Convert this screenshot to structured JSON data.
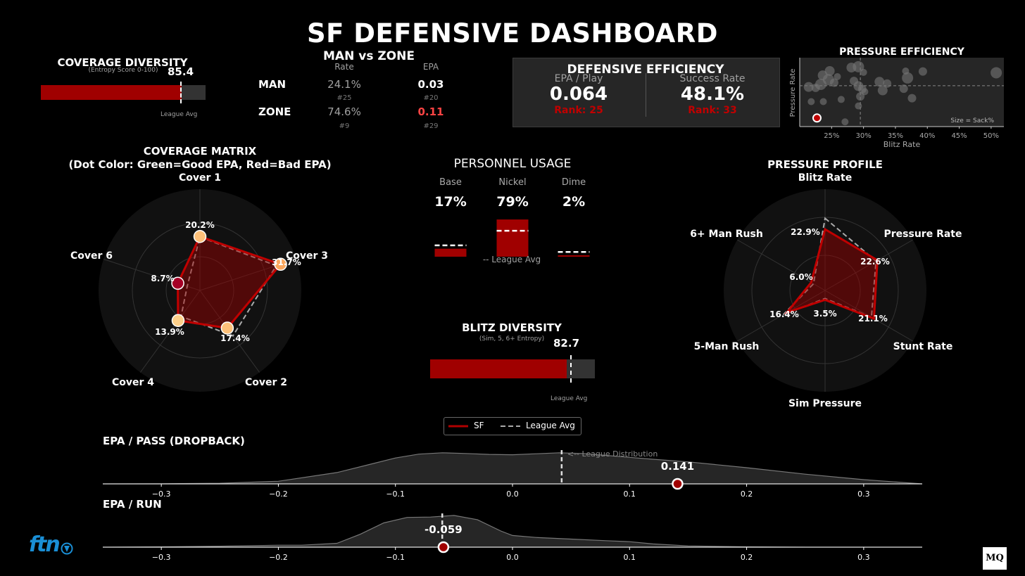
{
  "title": "SF DEFENSIVE DASHBOARD",
  "coverage_diversity": {
    "title": "COVERAGE DIVERSITY",
    "subtitle": "(Entropy Score 0-100)",
    "value": "85.4",
    "score": 85.4,
    "league_avg": 85.0,
    "league_label": "League Avg"
  },
  "man_zone": {
    "title": "MAN vs ZONE",
    "col_rate": "Rate",
    "col_epa": "EPA",
    "rows": [
      {
        "label": "MAN",
        "rate": "24.1%",
        "rate_rank": "#25",
        "epa": "0.03",
        "epa_rank": "#20"
      },
      {
        "label": "ZONE",
        "rate": "74.6%",
        "rate_rank": "#9",
        "epa": "0.11",
        "epa_rank": "#29"
      }
    ]
  },
  "defensive_efficiency": {
    "title": "DEFENSIVE EFFICIENCY",
    "epa_label": "EPA / Play",
    "epa_value": "0.064",
    "epa_rank": "Rank: 25",
    "success_label": "Success Rate",
    "success_value": "48.1%",
    "success_rank": "Rank: 33"
  },
  "pressure_efficiency": {
    "title": "PRESSURE EFFICIENCY",
    "xlabel": "Blitz Rate",
    "ylabel": "Pressure Rate",
    "note": "Size = Sack%",
    "x_ticks": [
      "25%",
      "30%",
      "35%",
      "40%",
      "45%",
      "50%"
    ]
  },
  "coverage_matrix": {
    "title_line1": "COVERAGE MATRIX",
    "title_line2": "(Dot Color: Green=Good EPA, Red=Bad EPA)",
    "axes": [
      "Cover 1",
      "Cover 3",
      "Cover 2",
      "Cover 4",
      "Cover 6"
    ],
    "labels": [
      "20.2%",
      "31.7%",
      "17.4%",
      "13.9%",
      "8.7%"
    ]
  },
  "personnel": {
    "title": "PERSONNEL USAGE",
    "legend_note": "-- League Avg",
    "groups": [
      {
        "name": "Base",
        "pct": "17%"
      },
      {
        "name": "Nickel",
        "pct": "79%"
      },
      {
        "name": "Dime",
        "pct": "2%"
      }
    ]
  },
  "blitz_diversity": {
    "title": "BLITZ DIVERSITY",
    "subtitle": "(Sim, 5, 6+ Entropy)",
    "value": "82.7",
    "score": 82.7,
    "league_avg": 85.5,
    "league_label": "League Avg"
  },
  "pressure_profile": {
    "title": "PRESSURE PROFILE",
    "axes": [
      "Blitz Rate",
      "Pressure Rate",
      "Stunt Rate",
      "Sim Pressure",
      "5-Man Rush",
      "6+ Man Rush"
    ],
    "labels": [
      "22.9%",
      "22.6%",
      "21.1%",
      "3.5%",
      "16.4%",
      "6.0%"
    ]
  },
  "legend": {
    "sf": "SF",
    "league": "League Avg"
  },
  "epa_pass": {
    "title": "EPA / PASS (DROPBACK)",
    "value": "0.141",
    "dist_label": "<-- League Distribution",
    "ticks": [
      "−0.3",
      "−0.2",
      "−0.1",
      "0.0",
      "0.1",
      "0.2",
      "0.3"
    ]
  },
  "epa_run": {
    "title": "EPA / RUN",
    "value": "-0.059",
    "ticks": [
      "−0.3",
      "−0.2",
      "−0.1",
      "0.0",
      "0.1",
      "0.2",
      "0.3"
    ]
  },
  "logos": {
    "ftn": "ftn",
    "mq": "MQ"
  },
  "chart_data": [
    {
      "type": "bar",
      "chart": "coverage_diversity",
      "values": [
        85.4
      ],
      "league_avg": 85.0,
      "ylim": [
        0,
        100
      ]
    },
    {
      "type": "scatter",
      "chart": "pressure_efficiency",
      "xlabel": "Blitz Rate",
      "ylabel": "Pressure Rate",
      "xlim": [
        0.2,
        0.52
      ],
      "ylim": [
        0.28,
        0.44
      ],
      "x_avg": 0.295,
      "y_avg": 0.375,
      "sf_point": {
        "x": 0.227,
        "y": 0.3
      },
      "points": [
        {
          "x": 0.214,
          "y": 0.372,
          "s": 7
        },
        {
          "x": 0.225,
          "y": 0.37,
          "s": 6
        },
        {
          "x": 0.233,
          "y": 0.378,
          "s": 8
        },
        {
          "x": 0.236,
          "y": 0.399,
          "s": 7
        },
        {
          "x": 0.245,
          "y": 0.389,
          "s": 8
        },
        {
          "x": 0.254,
          "y": 0.382,
          "s": 6
        },
        {
          "x": 0.259,
          "y": 0.396,
          "s": 5
        },
        {
          "x": 0.247,
          "y": 0.409,
          "s": 7
        },
        {
          "x": 0.281,
          "y": 0.417,
          "s": 7
        },
        {
          "x": 0.292,
          "y": 0.419,
          "s": 8
        },
        {
          "x": 0.3,
          "y": 0.406,
          "s": 5
        },
        {
          "x": 0.285,
          "y": 0.386,
          "s": 6
        },
        {
          "x": 0.292,
          "y": 0.374,
          "s": 7
        },
        {
          "x": 0.298,
          "y": 0.367,
          "s": 6
        },
        {
          "x": 0.302,
          "y": 0.361,
          "s": 5
        },
        {
          "x": 0.325,
          "y": 0.384,
          "s": 7
        },
        {
          "x": 0.337,
          "y": 0.38,
          "s": 6
        },
        {
          "x": 0.33,
          "y": 0.364,
          "s": 7
        },
        {
          "x": 0.366,
          "y": 0.409,
          "s": 5
        },
        {
          "x": 0.369,
          "y": 0.393,
          "s": 8
        },
        {
          "x": 0.376,
          "y": 0.346,
          "s": 6
        },
        {
          "x": 0.363,
          "y": 0.368,
          "s": 6
        },
        {
          "x": 0.393,
          "y": 0.408,
          "s": 6
        },
        {
          "x": 0.508,
          "y": 0.405,
          "s": 8
        },
        {
          "x": 0.218,
          "y": 0.338,
          "s": 5
        },
        {
          "x": 0.237,
          "y": 0.338,
          "s": 5
        },
        {
          "x": 0.265,
          "y": 0.343,
          "s": 5
        },
        {
          "x": 0.292,
          "y": 0.328,
          "s": 5
        },
        {
          "x": 0.271,
          "y": 0.291,
          "s": 5
        },
        {
          "x": 0.295,
          "y": 0.35,
          "s": 6
        }
      ]
    },
    {
      "type": "radar",
      "chart": "coverage_matrix",
      "axes": [
        "Cover 1",
        "Cover 3",
        "Cover 2",
        "Cover 4",
        "Cover 6"
      ],
      "sf": [
        20.2,
        31.7,
        17.4,
        13.9,
        8.7
      ],
      "league": [
        20.0,
        30.0,
        21.0,
        12.0,
        5.0
      ],
      "dot_colors": [
        "#fdc079",
        "#fba75d",
        "#fdc079",
        "#fdd08a",
        "#a50026"
      ],
      "rmax": 40
    },
    {
      "type": "bar",
      "chart": "personnel_usage",
      "categories": [
        "Base",
        "Nickel",
        "Dime"
      ],
      "values": [
        17,
        79,
        2
      ],
      "league_avg": [
        24,
        55,
        10
      ]
    },
    {
      "type": "bar",
      "chart": "blitz_diversity",
      "values": [
        82.7
      ],
      "league_avg": 85.5,
      "ylim": [
        0,
        100
      ]
    },
    {
      "type": "radar",
      "chart": "pressure_profile",
      "axes": [
        "Blitz Rate",
        "Pressure Rate",
        "Stunt Rate",
        "Sim Pressure",
        "5-Man Rush",
        "6+ Man Rush"
      ],
      "sf": [
        22.9,
        22.6,
        21.1,
        3.5,
        16.4,
        6.0
      ],
      "league": [
        27.0,
        22.0,
        20.0,
        3.0,
        18.0,
        5.0
      ],
      "rmax": 40
    },
    {
      "type": "area",
      "chart": "epa_pass",
      "xlim": [
        -0.35,
        0.35
      ],
      "x": [
        -0.35,
        -0.3,
        -0.25,
        -0.2,
        -0.15,
        -0.12,
        -0.1,
        -0.08,
        -0.06,
        -0.04,
        -0.02,
        0.0,
        0.02,
        0.04,
        0.06,
        0.08,
        0.1,
        0.12,
        0.15,
        0.2,
        0.25,
        0.3,
        0.35
      ],
      "y": [
        0.0,
        0.005,
        0.02,
        0.08,
        0.35,
        0.62,
        0.8,
        0.92,
        0.96,
        0.94,
        0.91,
        0.9,
        0.93,
        0.96,
        0.94,
        0.88,
        0.82,
        0.76,
        0.68,
        0.5,
        0.3,
        0.13,
        0.0
      ],
      "league_avg": 0.042,
      "sf_value": 0.141
    },
    {
      "type": "area",
      "chart": "epa_run",
      "xlim": [
        -0.35,
        0.35
      ],
      "x": [
        -0.35,
        -0.3,
        -0.25,
        -0.2,
        -0.18,
        -0.15,
        -0.13,
        -0.11,
        -0.09,
        -0.07,
        -0.05,
        -0.03,
        -0.01,
        0.0,
        0.02,
        0.05,
        0.08,
        0.1,
        0.12,
        0.15,
        0.2,
        0.25,
        0.35
      ],
      "y": [
        0.0,
        0.01,
        0.03,
        0.06,
        0.06,
        0.12,
        0.4,
        0.75,
        0.92,
        0.93,
        0.98,
        0.85,
        0.5,
        0.36,
        0.3,
        0.25,
        0.2,
        0.17,
        0.1,
        0.04,
        0.01,
        0.0,
        0.0
      ],
      "league_avg": -0.06,
      "sf_value": -0.059
    }
  ]
}
